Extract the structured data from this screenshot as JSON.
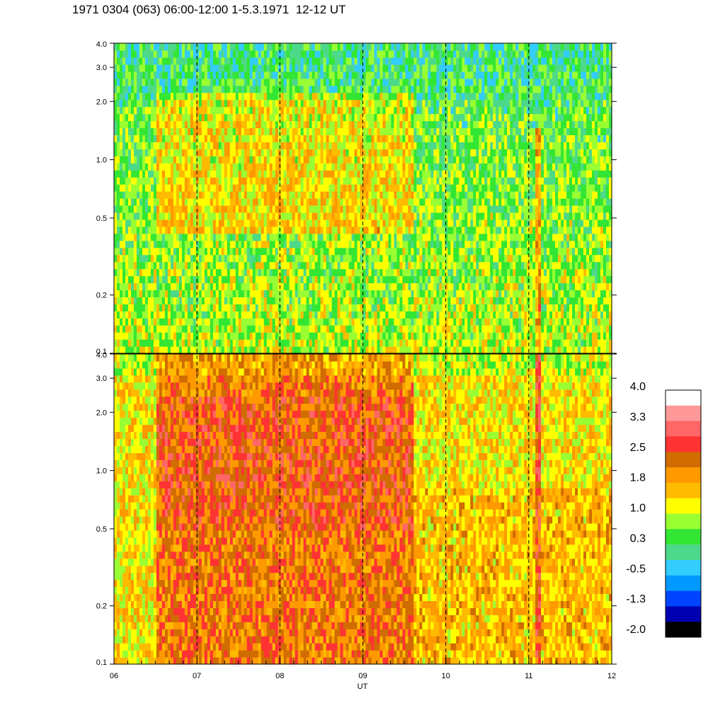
{
  "title": "1971 0304 (063) 06:00-12:00 1-5.3.1971  12-12 UT",
  "chart_data": {
    "type": "heatmap",
    "panels": [
      {
        "name": "",
        "yaxis_scale": "log",
        "ylim": [
          0.1,
          4.0
        ],
        "yticks": [
          {
            "value": 0.1,
            "label": "0.1"
          },
          {
            "value": 0.2,
            "label": "0.2"
          },
          {
            "value": 0.5,
            "label": "0.5"
          },
          {
            "value": 1.0,
            "label": "1.0"
          },
          {
            "value": 2.0,
            "label": "2.0"
          },
          {
            "value": 3.0,
            "label": "3.0"
          },
          {
            "value": 4.0,
            "label": "4.0"
          }
        ],
        "dominant_levels": "-0.5 to 1.0 (green/cyan), enhanced 1.0-1.8 between 06:30 and 09:40 at 0.5-2.0, narrow enhancement near 11:05"
      },
      {
        "name": "",
        "yaxis_scale": "log",
        "ylim": [
          0.1,
          4.0
        ],
        "yticks": [
          {
            "value": 0.1,
            "label": "0.1"
          },
          {
            "value": 0.2,
            "label": "0.2"
          },
          {
            "value": 0.5,
            "label": "0.5"
          },
          {
            "value": 1.0,
            "label": "1.0"
          },
          {
            "value": 2.0,
            "label": "2.0"
          },
          {
            "value": 3.0,
            "label": "3.0"
          },
          {
            "value": 4.0,
            "label": "4.0"
          }
        ],
        "dominant_levels": "1.0 to 2.5 (yellow/orange/red), strongest 2.5 between 06:30 and 09:35, weaker after 09:40, narrow red band near 11:05"
      }
    ],
    "x": {
      "label": "UT",
      "range": [
        "06",
        "12"
      ],
      "ticks": [
        "06",
        "07",
        "08",
        "09",
        "10",
        "11",
        "12"
      ],
      "dashed_gridlines_at": [
        "07",
        "08",
        "09",
        "10",
        "11"
      ]
    },
    "colorbar": {
      "range": [
        -2.0,
        4.0
      ],
      "labels": [
        "4.0",
        "3.3",
        "2.5",
        "1.8",
        "1.0",
        "0.3",
        "-0.5",
        "-1.3",
        "-2.0"
      ],
      "colors_top_to_bottom": [
        "#ffffff",
        "#ff9999",
        "#ff6666",
        "#ff3333",
        "#d06c00",
        "#ff9900",
        "#ffbb00",
        "#ffff00",
        "#99ff33",
        "#33e633",
        "#4dd98a",
        "#33ccff",
        "#0099ff",
        "#0044ff",
        "#0000b3",
        "#000000"
      ]
    }
  }
}
